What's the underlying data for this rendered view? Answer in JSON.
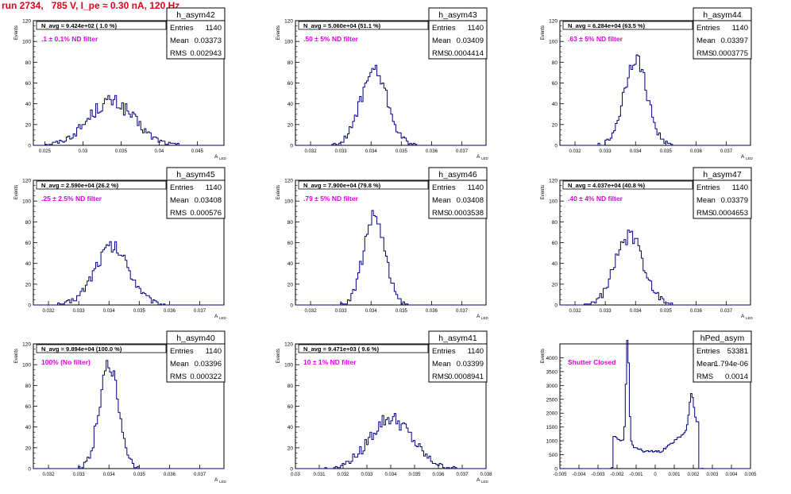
{
  "title": "run 2734,   785 V, I_pe ≈ 0.30 nA, 120 Hz",
  "colors": {
    "title": "#e0001b",
    "hist": "#000080",
    "note": "#e000e0",
    "frame": "#000000"
  },
  "chart_data": [
    {
      "type": "histogram",
      "name": "h_asym42",
      "ylabel": "Events",
      "xlabel": "A",
      "xlabel_sub": "LED",
      "navg": "N_avg = 9.424e+02 ( 1.0 %)",
      "note": ".1 ± 0.1% ND filter",
      "stats": {
        "Entries": "1140",
        "Mean": "0.03373",
        "RMS": "0.002943"
      },
      "xlim": [
        0.0235,
        0.0485
      ],
      "ylim": [
        0,
        120
      ],
      "xticks": [
        "0.025",
        "0.03",
        "0.035",
        "0.04",
        "0.045"
      ],
      "xtick_values": [
        0.025,
        0.03,
        0.035,
        0.04,
        0.045
      ],
      "yticks": [
        0,
        20,
        40,
        60,
        80,
        100,
        120
      ],
      "mean": 0.0337,
      "sigma": 0.003,
      "peak": 42
    },
    {
      "type": "histogram",
      "name": "h_asym43",
      "ylabel": "Events",
      "xlabel": "A",
      "xlabel_sub": "LED",
      "navg": "N_avg = 5.060e+04 (51.1 %)",
      "note": ".50 ± 5% ND filter",
      "stats": {
        "Entries": "1140",
        "Mean": "0.03409",
        "RMS": "0.0004414"
      },
      "xlim": [
        0.0315,
        0.0378
      ],
      "ylim": [
        0,
        120
      ],
      "xticks": [
        "0.032",
        "0.033",
        "0.034",
        "0.035",
        "0.036",
        "0.037"
      ],
      "xtick_values": [
        0.032,
        0.033,
        0.034,
        0.035,
        0.036,
        0.037
      ],
      "yticks": [
        0,
        20,
        40,
        60,
        80,
        100,
        120
      ],
      "mean": 0.0341,
      "sigma": 0.00044,
      "peak": 72
    },
    {
      "type": "histogram",
      "name": "h_asym44",
      "ylabel": "Events",
      "xlabel": "A",
      "xlabel_sub": "LED",
      "navg": "N_avg = 6.284e+04 (63.5 %)",
      "note": ".63 ± 5% ND filter",
      "stats": {
        "Entries": "1140",
        "Mean": "0.03397",
        "RMS": "0.0003775"
      },
      "xlim": [
        0.0315,
        0.0378
      ],
      "ylim": [
        0,
        120
      ],
      "xticks": [
        "0.032",
        "0.033",
        "0.034",
        "0.035",
        "0.036",
        "0.037"
      ],
      "xtick_values": [
        0.032,
        0.033,
        0.034,
        0.035,
        0.036,
        0.037
      ],
      "yticks": [
        0,
        20,
        40,
        60,
        80,
        100,
        120
      ],
      "mean": 0.034,
      "sigma": 0.00038,
      "peak": 84
    },
    {
      "type": "histogram",
      "name": "h_asym45",
      "ylabel": "Events",
      "xlabel": "A",
      "xlabel_sub": "LED",
      "navg": "N_avg = 2.590e+04 (26.2 %)",
      "note": ".25 ± 2.5% ND filter",
      "stats": {
        "Entries": "1140",
        "Mean": "0.03408",
        "RMS": "0.000576"
      },
      "xlim": [
        0.0315,
        0.0378
      ],
      "ylim": [
        0,
        120
      ],
      "xticks": [
        "0.032",
        "0.033",
        "0.034",
        "0.035",
        "0.036",
        "0.037"
      ],
      "xtick_values": [
        0.032,
        0.033,
        0.034,
        0.035,
        0.036,
        0.037
      ],
      "yticks": [
        0,
        20,
        40,
        60,
        80,
        100,
        120
      ],
      "mean": 0.0341,
      "sigma": 0.00058,
      "peak": 56
    },
    {
      "type": "histogram",
      "name": "h_asym46",
      "ylabel": "Events",
      "xlabel": "A",
      "xlabel_sub": "LED",
      "navg": "N_avg = 7.900e+04 (79.8 %)",
      "note": ".79 ± 5% ND filter",
      "stats": {
        "Entries": "1140",
        "Mean": "0.03408",
        "RMS": "0.0003538"
      },
      "xlim": [
        0.0315,
        0.0378
      ],
      "ylim": [
        0,
        120
      ],
      "xticks": [
        "0.032",
        "0.033",
        "0.034",
        "0.035",
        "0.036",
        "0.037"
      ],
      "xtick_values": [
        0.032,
        0.033,
        0.034,
        0.035,
        0.036,
        0.037
      ],
      "yticks": [
        0,
        20,
        40,
        60,
        80,
        100,
        120
      ],
      "mean": 0.0341,
      "sigma": 0.00035,
      "peak": 86
    },
    {
      "type": "histogram",
      "name": "h_asym47",
      "ylabel": "Events",
      "xlabel": "A",
      "xlabel_sub": "LED",
      "navg": "N_avg = 4.037e+04 (40.8 %)",
      "note": ".40 ± 4% ND filter",
      "stats": {
        "Entries": "1140",
        "Mean": "0.03379",
        "RMS": "0.0004653"
      },
      "xlim": [
        0.0315,
        0.0378
      ],
      "ylim": [
        0,
        120
      ],
      "xticks": [
        "0.032",
        "0.033",
        "0.034",
        "0.035",
        "0.036",
        "0.037"
      ],
      "xtick_values": [
        0.032,
        0.033,
        0.034,
        0.035,
        0.036,
        0.037
      ],
      "yticks": [
        0,
        20,
        40,
        60,
        80,
        100,
        120
      ],
      "mean": 0.0338,
      "sigma": 0.00047,
      "peak": 66
    },
    {
      "type": "histogram",
      "name": "h_asym40",
      "ylabel": "Events",
      "xlabel": "A",
      "xlabel_sub": "LED",
      "navg": "N_avg = 9.894e+04 (100.0 %)",
      "note": "100% (No filter)",
      "stats": {
        "Entries": "1140",
        "Mean": "0.03396",
        "RMS": "0.000322"
      },
      "xlim": [
        0.0315,
        0.0378
      ],
      "ylim": [
        0,
        120
      ],
      "xticks": [
        "0.032",
        "0.033",
        "0.034",
        "0.035",
        "0.036",
        "0.037"
      ],
      "xtick_values": [
        0.032,
        0.033,
        0.034,
        0.035,
        0.036,
        0.037
      ],
      "yticks": [
        0,
        20,
        40,
        60,
        80,
        100,
        120
      ],
      "mean": 0.034,
      "sigma": 0.00032,
      "peak": 100
    },
    {
      "type": "histogram",
      "name": "h_asym41",
      "ylabel": "Events",
      "xlabel": "A",
      "xlabel_sub": "LED",
      "navg": "N_avg = 9.471e+03 ( 9.6 %)",
      "note": "10 ± 1% ND filter",
      "stats": {
        "Entries": "1140",
        "Mean": "0.03399",
        "RMS": "0.0008941"
      },
      "xlim": [
        0.03,
        0.038
      ],
      "ylim": [
        0,
        120
      ],
      "xticks": [
        "0.03",
        "0.031",
        "0.032",
        "0.033",
        "0.034",
        "0.035",
        "0.036",
        "0.037",
        "0.038"
      ],
      "xtick_values": [
        0.03,
        0.031,
        0.032,
        0.033,
        0.034,
        0.035,
        0.036,
        0.037,
        0.038
      ],
      "yticks": [
        0,
        20,
        40,
        60,
        80,
        100,
        120
      ],
      "mean": 0.034,
      "sigma": 0.00089,
      "peak": 48
    },
    {
      "type": "histogram",
      "name": "hPed_asym",
      "ylabel": "Events",
      "xlabel": "",
      "xlabel_sub": "",
      "navg": "",
      "note": "Shutter Closed",
      "stats": {
        "Entries": "53381",
        "Mean": "1.794e-06",
        "RMS": "0.0014"
      },
      "xlim": [
        -0.005,
        0.005
      ],
      "ylim": [
        0,
        4500
      ],
      "xticks": [
        "-0.005",
        "-0.004",
        "-0.003",
        "-0.002",
        "-0.001",
        "0",
        "0.001",
        "0.002",
        "0.003",
        "0.004",
        "0.005"
      ],
      "xtick_values": [
        -0.005,
        -0.004,
        -0.003,
        -0.002,
        -0.001,
        0,
        0.001,
        0.002,
        0.003,
        0.004,
        0.005
      ],
      "yticks": [
        0,
        500,
        1000,
        1500,
        2000,
        2500,
        3000,
        3500,
        4000
      ],
      "pedestal": true
    }
  ]
}
